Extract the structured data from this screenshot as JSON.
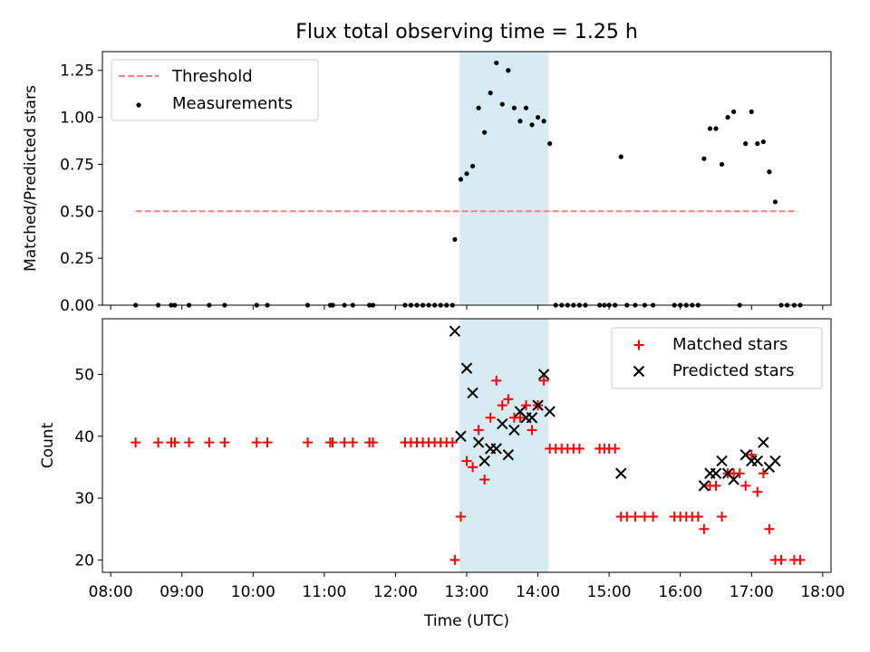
{
  "title": "Flux total observing time = 1.25 h",
  "colors": {
    "threshold": "#ff7f7f",
    "measurement": "#000000",
    "matched": "#ff0000",
    "predicted": "#000000",
    "span_fill": "#add8e6"
  },
  "chart_data": [
    {
      "type": "scatter",
      "ylabel": "Matched/Predicted stars",
      "xlim": [
        "07:53",
        "18:07"
      ],
      "ylim": [
        0.0,
        1.35
      ],
      "yticks": [
        "0.00",
        "0.25",
        "0.50",
        "0.75",
        "1.00",
        "1.25"
      ],
      "legend_position": "upper-left",
      "highlight_span": {
        "x_start": "12:54",
        "x_end": "14:09"
      },
      "threshold": {
        "name": "Threshold",
        "y": 0.5,
        "x_start": "08:21",
        "x_end": "17:39"
      },
      "measurements": {
        "name": "Measurements",
        "points": [
          [
            "08:21",
            0.0
          ],
          [
            "08:40",
            0.0
          ],
          [
            "08:51",
            0.0
          ],
          [
            "08:54",
            0.0
          ],
          [
            "09:06",
            0.0
          ],
          [
            "09:23",
            0.0
          ],
          [
            "09:36",
            0.0
          ],
          [
            "10:03",
            0.0
          ],
          [
            "10:12",
            0.0
          ],
          [
            "10:46",
            0.0
          ],
          [
            "11:05",
            0.0
          ],
          [
            "11:07",
            0.0
          ],
          [
            "11:17",
            0.0
          ],
          [
            "11:24",
            0.0
          ],
          [
            "11:38",
            0.0
          ],
          [
            "11:41",
            0.0
          ],
          [
            "12:08",
            0.0
          ],
          [
            "12:13",
            0.0
          ],
          [
            "12:18",
            0.0
          ],
          [
            "12:23",
            0.0
          ],
          [
            "12:28",
            0.0
          ],
          [
            "12:33",
            0.0
          ],
          [
            "12:38",
            0.0
          ],
          [
            "12:43",
            0.0
          ],
          [
            "12:48",
            0.0
          ],
          [
            "12:50",
            0.35
          ],
          [
            "12:55",
            0.67
          ],
          [
            "13:00",
            0.7
          ],
          [
            "13:05",
            0.74
          ],
          [
            "13:10",
            1.05
          ],
          [
            "13:15",
            0.92
          ],
          [
            "13:20",
            1.13
          ],
          [
            "13:25",
            1.29
          ],
          [
            "13:30",
            1.07
          ],
          [
            "13:35",
            1.25
          ],
          [
            "13:40",
            1.05
          ],
          [
            "13:45",
            0.98
          ],
          [
            "13:50",
            1.05
          ],
          [
            "13:55",
            0.96
          ],
          [
            "14:00",
            1.0
          ],
          [
            "14:05",
            0.98
          ],
          [
            "14:10",
            0.86
          ],
          [
            "14:15",
            0.0
          ],
          [
            "14:20",
            0.0
          ],
          [
            "14:25",
            0.0
          ],
          [
            "14:30",
            0.0
          ],
          [
            "14:35",
            0.0
          ],
          [
            "14:40",
            0.0
          ],
          [
            "14:52",
            0.0
          ],
          [
            "14:56",
            0.0
          ],
          [
            "15:00",
            0.0
          ],
          [
            "15:05",
            0.0
          ],
          [
            "15:10",
            0.79
          ],
          [
            "15:15",
            0.0
          ],
          [
            "15:22",
            0.0
          ],
          [
            "15:30",
            0.0
          ],
          [
            "15:37",
            0.0
          ],
          [
            "15:55",
            0.0
          ],
          [
            "16:00",
            0.0
          ],
          [
            "16:05",
            0.0
          ],
          [
            "16:10",
            0.0
          ],
          [
            "16:15",
            0.0
          ],
          [
            "16:20",
            0.78
          ],
          [
            "16:25",
            0.94
          ],
          [
            "16:30",
            0.94
          ],
          [
            "16:35",
            0.75
          ],
          [
            "16:40",
            1.0
          ],
          [
            "16:45",
            1.03
          ],
          [
            "16:50",
            0.0
          ],
          [
            "16:55",
            0.86
          ],
          [
            "17:00",
            1.03
          ],
          [
            "17:05",
            0.86
          ],
          [
            "17:10",
            0.87
          ],
          [
            "17:15",
            0.71
          ],
          [
            "17:20",
            0.55
          ],
          [
            "17:25",
            0.0
          ],
          [
            "17:30",
            0.0
          ],
          [
            "17:36",
            0.0
          ],
          [
            "17:41",
            0.0
          ]
        ]
      }
    },
    {
      "type": "scatter",
      "xlabel": "Time (UTC)",
      "ylabel": "Count",
      "xlim": [
        "07:53",
        "18:07"
      ],
      "ylim": [
        18,
        59
      ],
      "xticks": [
        "08:00",
        "09:00",
        "10:00",
        "11:00",
        "12:00",
        "13:00",
        "14:00",
        "15:00",
        "16:00",
        "17:00",
        "18:00"
      ],
      "yticks": [
        "20",
        "30",
        "40",
        "50"
      ],
      "legend_position": "upper-right",
      "highlight_span": {
        "x_start": "12:54",
        "x_end": "14:09"
      },
      "series": [
        {
          "name": "Matched stars",
          "marker": "plus",
          "points": [
            [
              "08:21",
              39
            ],
            [
              "08:40",
              39
            ],
            [
              "08:51",
              39
            ],
            [
              "08:54",
              39
            ],
            [
              "09:06",
              39
            ],
            [
              "09:23",
              39
            ],
            [
              "09:36",
              39
            ],
            [
              "10:03",
              39
            ],
            [
              "10:12",
              39
            ],
            [
              "10:46",
              39
            ],
            [
              "11:05",
              39
            ],
            [
              "11:07",
              39
            ],
            [
              "11:17",
              39
            ],
            [
              "11:24",
              39
            ],
            [
              "11:38",
              39
            ],
            [
              "11:41",
              39
            ],
            [
              "12:08",
              39
            ],
            [
              "12:13",
              39
            ],
            [
              "12:18",
              39
            ],
            [
              "12:23",
              39
            ],
            [
              "12:28",
              39
            ],
            [
              "12:33",
              39
            ],
            [
              "12:38",
              39
            ],
            [
              "12:43",
              39
            ],
            [
              "12:48",
              39
            ],
            [
              "12:50",
              20
            ],
            [
              "12:55",
              27
            ],
            [
              "13:00",
              36
            ],
            [
              "13:05",
              35
            ],
            [
              "13:10",
              41
            ],
            [
              "13:15",
              33
            ],
            [
              "13:20",
              43
            ],
            [
              "13:25",
              49
            ],
            [
              "13:30",
              45
            ],
            [
              "13:35",
              46
            ],
            [
              "13:40",
              43
            ],
            [
              "13:45",
              43
            ],
            [
              "13:50",
              45
            ],
            [
              "13:55",
              41
            ],
            [
              "14:00",
              45
            ],
            [
              "14:05",
              49
            ],
            [
              "14:10",
              38
            ],
            [
              "14:15",
              38
            ],
            [
              "14:20",
              38
            ],
            [
              "14:25",
              38
            ],
            [
              "14:30",
              38
            ],
            [
              "14:35",
              38
            ],
            [
              "14:52",
              38
            ],
            [
              "14:56",
              38
            ],
            [
              "15:00",
              38
            ],
            [
              "15:05",
              38
            ],
            [
              "15:10",
              27
            ],
            [
              "15:15",
              27
            ],
            [
              "15:22",
              27
            ],
            [
              "15:30",
              27
            ],
            [
              "15:37",
              27
            ],
            [
              "15:55",
              27
            ],
            [
              "16:00",
              27
            ],
            [
              "16:05",
              27
            ],
            [
              "16:10",
              27
            ],
            [
              "16:15",
              27
            ],
            [
              "16:20",
              25
            ],
            [
              "16:25",
              32
            ],
            [
              "16:30",
              32
            ],
            [
              "16:35",
              27
            ],
            [
              "16:40",
              34
            ],
            [
              "16:45",
              34
            ],
            [
              "16:50",
              34
            ],
            [
              "16:55",
              32
            ],
            [
              "17:00",
              37
            ],
            [
              "17:05",
              31
            ],
            [
              "17:10",
              34
            ],
            [
              "17:15",
              25
            ],
            [
              "17:20",
              20
            ],
            [
              "17:25",
              20
            ],
            [
              "17:36",
              20
            ],
            [
              "17:41",
              20
            ]
          ]
        },
        {
          "name": "Predicted stars",
          "marker": "x",
          "points": [
            [
              "12:50",
              57
            ],
            [
              "12:55",
              40
            ],
            [
              "13:00",
              51
            ],
            [
              "13:05",
              47
            ],
            [
              "13:10",
              39
            ],
            [
              "13:15",
              36
            ],
            [
              "13:20",
              38
            ],
            [
              "13:25",
              38
            ],
            [
              "13:30",
              42
            ],
            [
              "13:35",
              37
            ],
            [
              "13:40",
              41
            ],
            [
              "13:45",
              44
            ],
            [
              "13:50",
              43
            ],
            [
              "13:55",
              43
            ],
            [
              "14:00",
              45
            ],
            [
              "14:05",
              50
            ],
            [
              "14:10",
              44
            ],
            [
              "15:10",
              34
            ],
            [
              "16:20",
              32
            ],
            [
              "16:25",
              34
            ],
            [
              "16:30",
              34
            ],
            [
              "16:35",
              36
            ],
            [
              "16:40",
              34
            ],
            [
              "16:45",
              33
            ],
            [
              "16:55",
              37
            ],
            [
              "17:00",
              36
            ],
            [
              "17:05",
              36
            ],
            [
              "17:10",
              39
            ],
            [
              "17:15",
              35
            ],
            [
              "17:20",
              36
            ]
          ]
        }
      ]
    }
  ]
}
